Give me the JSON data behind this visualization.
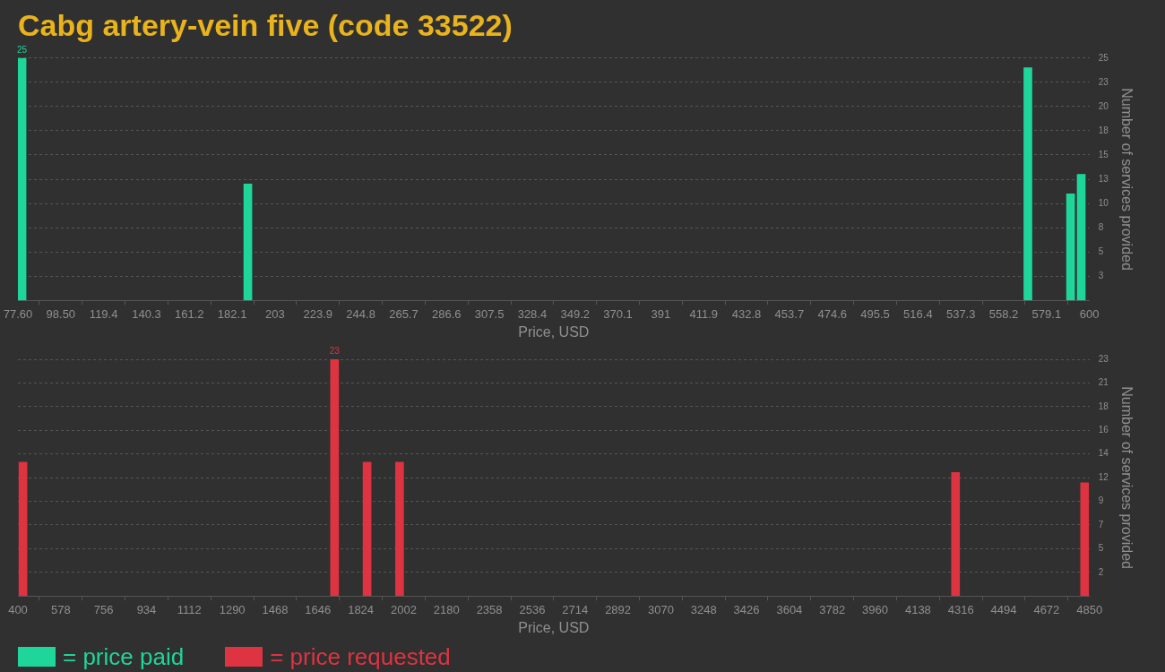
{
  "chart_data": [
    {
      "type": "bar",
      "title": "Cabg artery-vein five (code 33522)",
      "xlabel": "Price, USD",
      "ylabel": "Number of services provided",
      "xlim": [
        77.6,
        600
      ],
      "xticks": [
        {
          "value": 77.6,
          "label": "77.60"
        },
        {
          "value": 98.496,
          "label": "98.50"
        },
        {
          "value": 119.392,
          "label": "119.4"
        },
        {
          "value": 140.288,
          "label": "140.3"
        },
        {
          "value": 161.184,
          "label": "161.2"
        },
        {
          "value": 182.08,
          "label": "182.1"
        },
        {
          "value": 202.976,
          "label": "203"
        },
        {
          "value": 223.872,
          "label": "223.9"
        },
        {
          "value": 244.768,
          "label": "244.8"
        },
        {
          "value": 265.664,
          "label": "265.7"
        },
        {
          "value": 286.56,
          "label": "286.6"
        },
        {
          "value": 307.456,
          "label": "307.5"
        },
        {
          "value": 328.352,
          "label": "328.4"
        },
        {
          "value": 349.248,
          "label": "349.2"
        },
        {
          "value": 370.144,
          "label": "370.1"
        },
        {
          "value": 391.04,
          "label": "391"
        },
        {
          "value": 411.936,
          "label": "411.9"
        },
        {
          "value": 432.832,
          "label": "432.8"
        },
        {
          "value": 453.728,
          "label": "453.7"
        },
        {
          "value": 474.624,
          "label": "474.6"
        },
        {
          "value": 495.52,
          "label": "495.5"
        },
        {
          "value": 516.416,
          "label": "516.4"
        },
        {
          "value": 537.312,
          "label": "537.3"
        },
        {
          "value": 558.208,
          "label": "558.2"
        },
        {
          "value": 579.104,
          "label": "579.1"
        },
        600
      ],
      "ylim": [
        0,
        25
      ],
      "yticks": [
        {
          "value": 2.5,
          "label": "3"
        },
        5,
        {
          "value": 7.5,
          "label": "8"
        },
        10,
        {
          "value": 12.5,
          "label": "13"
        },
        15,
        {
          "value": 17.5,
          "label": "18"
        },
        20,
        {
          "value": 22.5,
          "label": "23"
        },
        25
      ],
      "grid": "y",
      "legend": "bottom left",
      "series": [
        {
          "name": "= price paid",
          "color": "#1fd69a",
          "x": [
            79.6,
            189.7,
            570,
            590.8,
            596
          ],
          "values": [
            25,
            12,
            24,
            11,
            13
          ],
          "value_labels": [
            "25",
            null,
            null,
            null,
            null
          ]
        }
      ]
    },
    {
      "type": "bar",
      "xlabel": "Price, USD",
      "ylabel": "Number of services provided",
      "xlim": [
        400,
        4850
      ],
      "xticks": [
        400,
        578,
        756,
        934,
        1112,
        1290,
        1468,
        1646,
        1824,
        2002,
        2180,
        2358,
        2536,
        2714,
        2892,
        3070,
        3248,
        3426,
        3604,
        3782,
        3960,
        4138,
        4316,
        4494,
        4672,
        4850
      ],
      "ylim": [
        0,
        23
      ],
      "yticks": [
        {
          "value": 2.3,
          "label": "2"
        },
        {
          "value": 4.6,
          "label": "5"
        },
        {
          "value": 6.9,
          "label": "7"
        },
        {
          "value": 9.2,
          "label": "9"
        },
        {
          "value": 11.5,
          "label": "12"
        },
        {
          "value": 13.8,
          "label": "14"
        },
        {
          "value": 16.1,
          "label": "16"
        },
        {
          "value": 18.4,
          "label": "18"
        },
        {
          "value": 20.7,
          "label": "21"
        },
        23
      ],
      "grid": "y",
      "legend": "bottom left",
      "series": [
        {
          "name": "= price requested",
          "color": "#de3340",
          "x": [
            421,
            1715,
            1850,
            1985,
            4294,
            4830
          ],
          "values": [
            13,
            23,
            13,
            13,
            12,
            11
          ],
          "value_labels": [
            null,
            "23",
            null,
            null,
            null,
            null
          ]
        }
      ]
    }
  ]
}
